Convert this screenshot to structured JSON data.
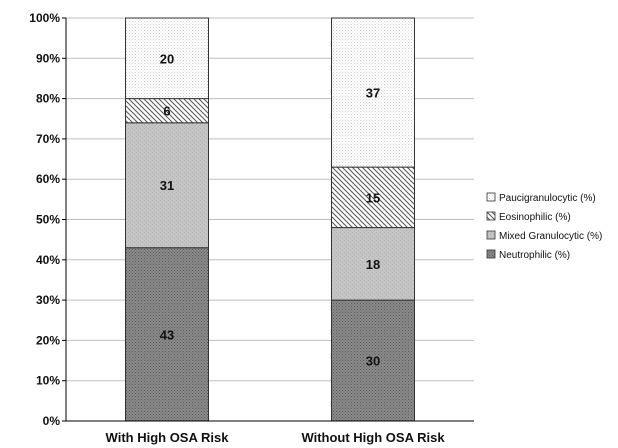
{
  "chart_data": {
    "type": "bar",
    "stacked": true,
    "categories": [
      "With High OSA Risk",
      "Without High OSA Risk"
    ],
    "series": [
      {
        "name": "Neutrophilic (%)",
        "values": [
          43,
          30
        ],
        "pattern": "dark-dots",
        "color": "#7a7a7a"
      },
      {
        "name": "Mixed Granulocytic (%)",
        "values": [
          31,
          18
        ],
        "pattern": "light-gray",
        "color": "#bdbdbd"
      },
      {
        "name": "Eosinophilic (%)",
        "values": [
          6,
          15
        ],
        "pattern": "diagonal-hatch",
        "color": "#d9d9d9"
      },
      {
        "name": "Paucigranulocytic (%)",
        "values": [
          20,
          37
        ],
        "pattern": "fine-dots",
        "color": "#f2f2f2"
      }
    ],
    "ylim": [
      0,
      100
    ],
    "yticks": [
      "0%",
      "10%",
      "20%",
      "30%",
      "40%",
      "50%",
      "60%",
      "70%",
      "80%",
      "90%",
      "100%"
    ],
    "grid": true,
    "legend_position": "right",
    "legend_order": [
      "Paucigranulocytic (%)",
      "Eosinophilic (%)",
      "Mixed Granulocytic (%)",
      "Neutrophilic (%)"
    ],
    "xlabel": "",
    "ylabel": "",
    "title": ""
  }
}
